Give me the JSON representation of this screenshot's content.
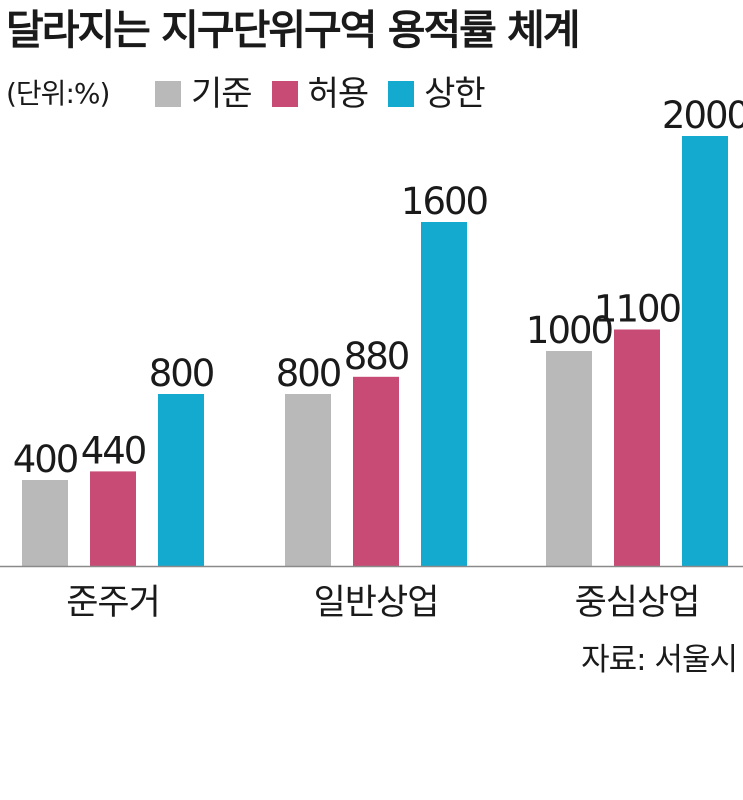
{
  "title": "달라지는 지구단위구역 용적률 체계",
  "unit": "(단위:%)",
  "source": "자료: 서울시",
  "colors": {
    "기준": "#b9b9b9",
    "허용": "#c84b75",
    "상한": "#14a9cf"
  },
  "chart_data": {
    "type": "bar",
    "categories": [
      "준주거",
      "일반상업",
      "중심상업"
    ],
    "series": [
      {
        "name": "기준",
        "values": [
          400,
          800,
          1000
        ]
      },
      {
        "name": "허용",
        "values": [
          440,
          880,
          1100
        ]
      },
      {
        "name": "상한",
        "values": [
          800,
          1600,
          2000
        ]
      }
    ],
    "ylim": [
      0,
      2000
    ],
    "grid": false,
    "legend": "top-left",
    "data_labels": true
  }
}
